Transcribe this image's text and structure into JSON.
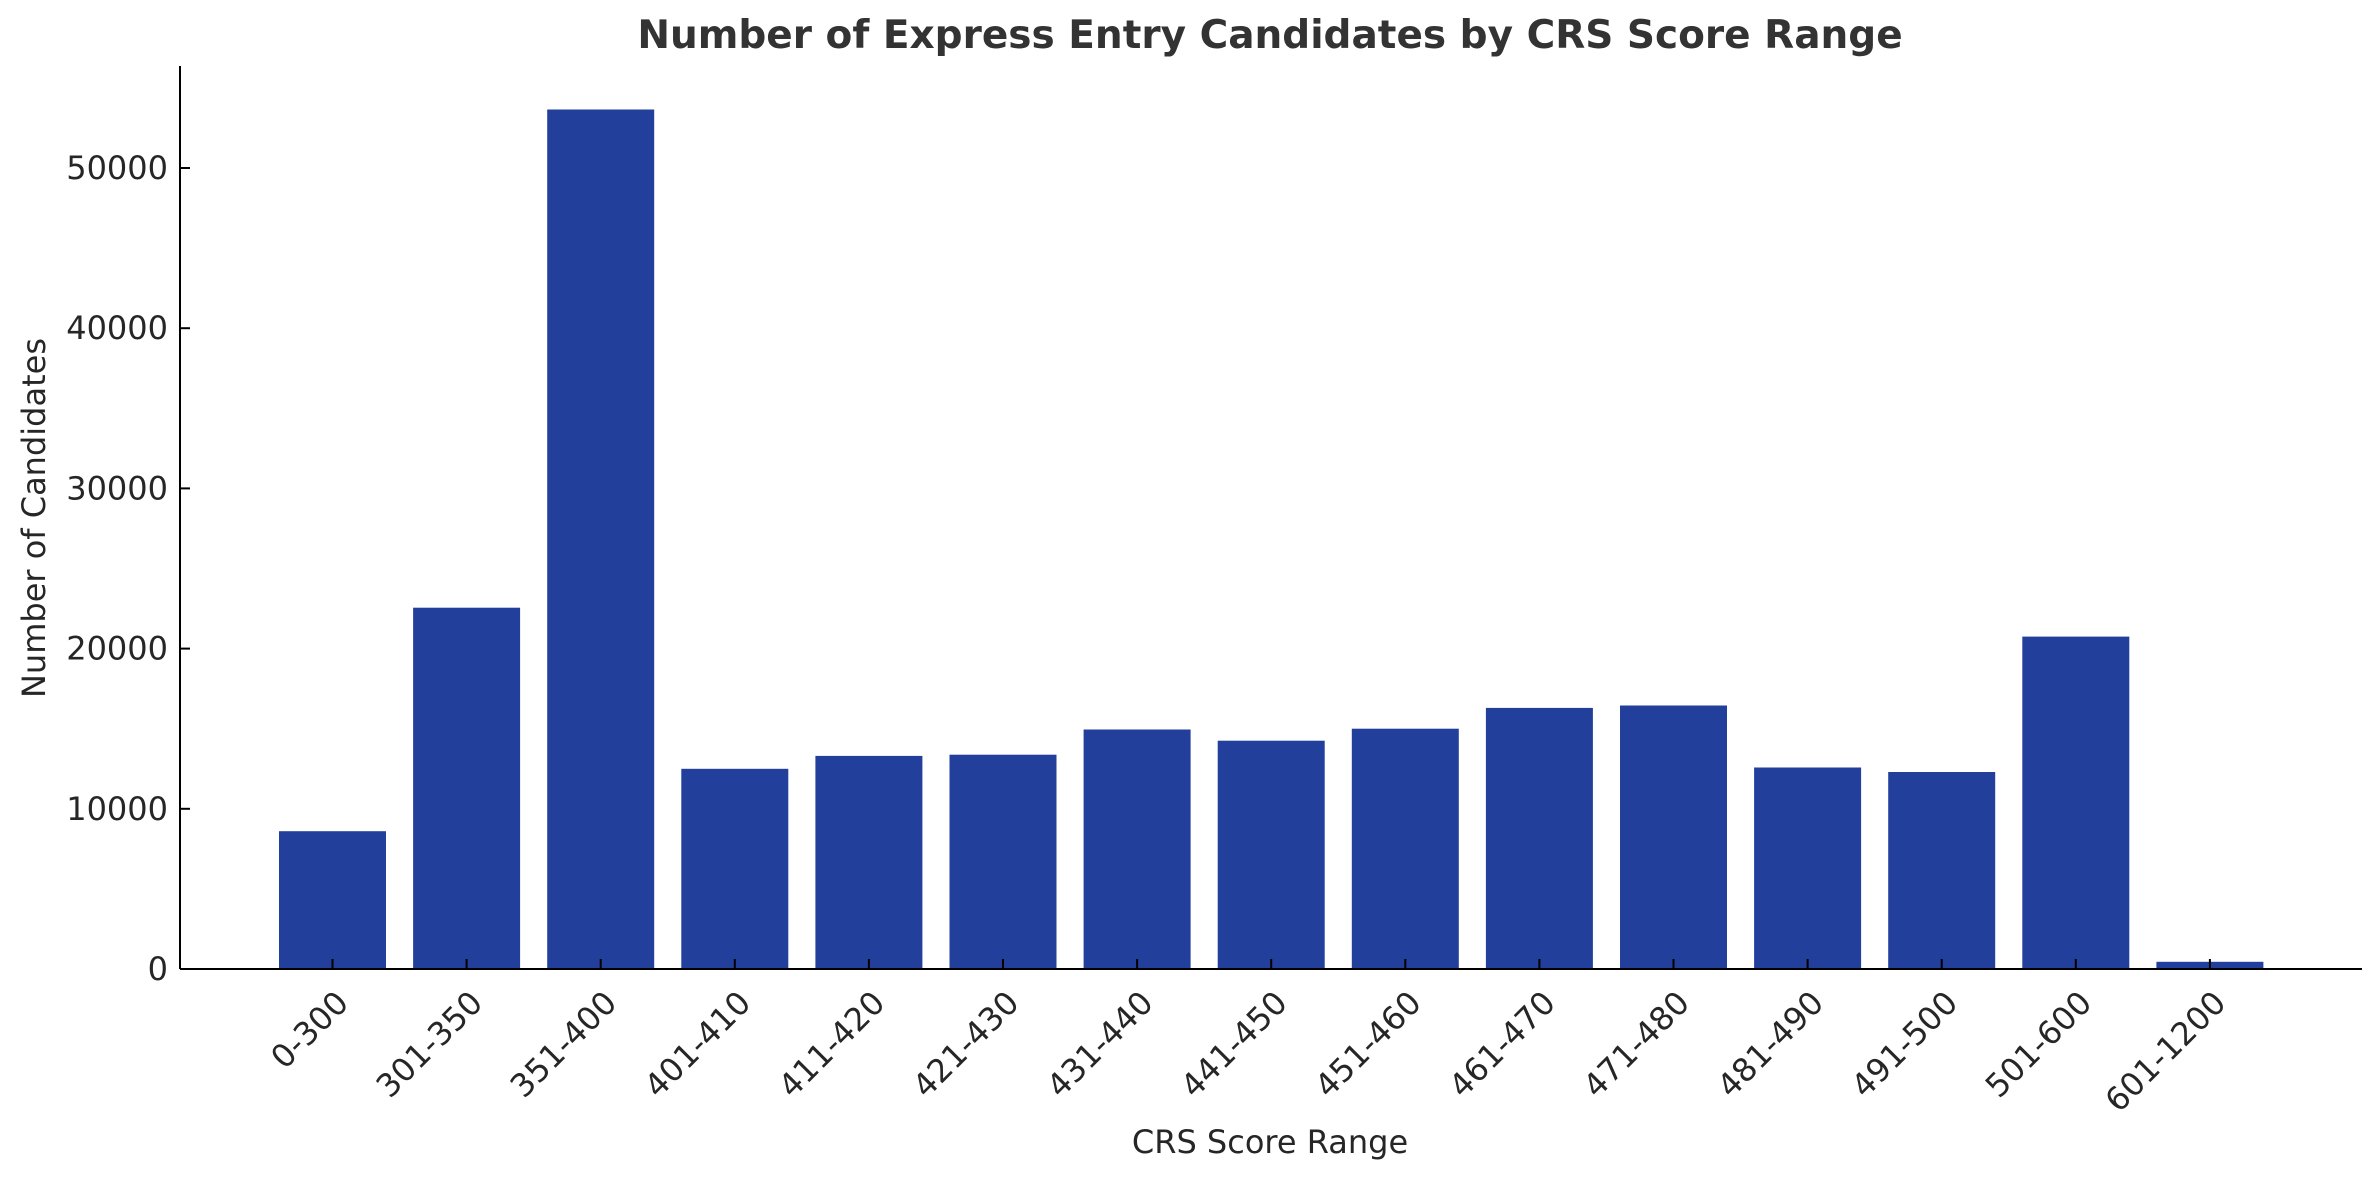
{
  "chart_data": {
    "type": "bar",
    "title": "Number of Express Entry Candidates by CRS Score Range",
    "xlabel": "CRS Score Range",
    "ylabel": "Number of Candidates",
    "categories": [
      "0-300",
      "301-350",
      "351-400",
      "401-410",
      "411-420",
      "421-430",
      "431-440",
      "441-450",
      "451-460",
      "461-470",
      "471-480",
      "481-490",
      "491-500",
      "501-600",
      "601-1200"
    ],
    "values": [
      8600,
      22550,
      53650,
      12500,
      13300,
      13380,
      14950,
      14250,
      15000,
      16300,
      16450,
      12580,
      12300,
      20750,
      450
    ],
    "yticks": [
      0,
      10000,
      20000,
      30000,
      40000,
      50000
    ],
    "ylim": [
      0,
      56200
    ],
    "bar_color": "#233f9c",
    "grid": false,
    "legend": "none"
  }
}
